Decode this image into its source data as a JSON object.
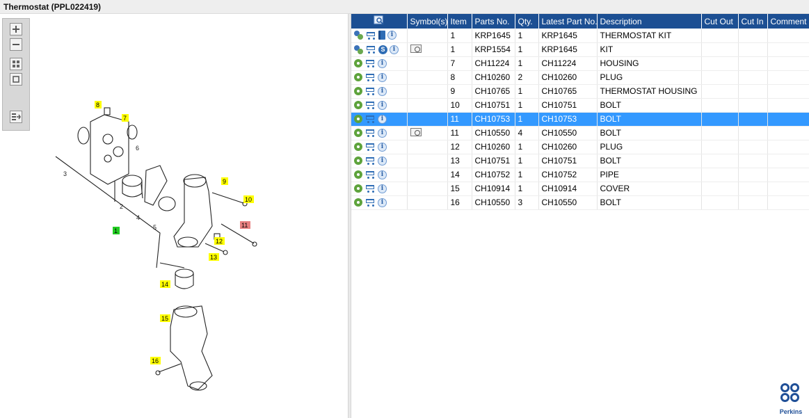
{
  "window": {
    "title": "Thermostat (PPL022419)"
  },
  "toolbox": {
    "tools": [
      {
        "name": "zoom-in-icon"
      },
      {
        "name": "zoom-out-icon"
      },
      {
        "name": "fit-grid-icon"
      },
      {
        "name": "fit-page-icon"
      },
      {
        "name": "export-list-icon"
      }
    ]
  },
  "diagram": {
    "callouts": [
      {
        "label": "1",
        "highlight": "green"
      },
      {
        "label": "2",
        "highlight": "none"
      },
      {
        "label": "3",
        "highlight": "none"
      },
      {
        "label": "4",
        "highlight": "none"
      },
      {
        "label": "5",
        "highlight": "none"
      },
      {
        "label": "6",
        "highlight": "none"
      },
      {
        "label": "7",
        "highlight": "yellow"
      },
      {
        "label": "8",
        "highlight": "yellow"
      },
      {
        "label": "9",
        "highlight": "yellow"
      },
      {
        "label": "10",
        "highlight": "yellow"
      },
      {
        "label": "11",
        "highlight": "red"
      },
      {
        "label": "12",
        "highlight": "yellow"
      },
      {
        "label": "13",
        "highlight": "yellow"
      },
      {
        "label": "14",
        "highlight": "yellow"
      },
      {
        "label": "15",
        "highlight": "yellow"
      },
      {
        "label": "16",
        "highlight": "yellow"
      }
    ]
  },
  "table": {
    "columns": [
      "",
      "Symbol(s)",
      "Item",
      "Parts No.",
      "Qty.",
      "Latest Part No.",
      "Description",
      "Cut Out",
      "Cut In",
      "Comment"
    ],
    "rows": [
      {
        "icons": [
          "kit-cogs-icon",
          "cart-icon",
          "book-icon",
          "info-icon"
        ],
        "symbol": "",
        "item": "1",
        "part": "KRP1645",
        "qty": "1",
        "latest": "KRP1645",
        "desc": "THERMOSTAT KIT",
        "cutout": "",
        "cutin": "",
        "comment": "",
        "selected": false
      },
      {
        "icons": [
          "kit-cogs-icon",
          "cart-icon",
          "s-badge-icon",
          "info-icon"
        ],
        "symbol": "symbol-icon",
        "item": "1",
        "part": "KRP1554",
        "qty": "1",
        "latest": "KRP1645",
        "desc": "KIT",
        "cutout": "",
        "cutin": "",
        "comment": "",
        "selected": false
      },
      {
        "icons": [
          "part-cog-icon",
          "cart-icon",
          "info-icon"
        ],
        "symbol": "",
        "item": "7",
        "part": "CH11224",
        "qty": "1",
        "latest": "CH11224",
        "desc": "HOUSING",
        "cutout": "",
        "cutin": "",
        "comment": "",
        "selected": false
      },
      {
        "icons": [
          "part-cog-icon",
          "cart-icon",
          "info-icon"
        ],
        "symbol": "",
        "item": "8",
        "part": "CH10260",
        "qty": "2",
        "latest": "CH10260",
        "desc": "PLUG",
        "cutout": "",
        "cutin": "",
        "comment": "",
        "selected": false
      },
      {
        "icons": [
          "part-cog-icon",
          "cart-icon",
          "info-icon"
        ],
        "symbol": "",
        "item": "9",
        "part": "CH10765",
        "qty": "1",
        "latest": "CH10765",
        "desc": "THERMOSTAT HOUSING",
        "cutout": "",
        "cutin": "",
        "comment": "",
        "selected": false
      },
      {
        "icons": [
          "part-cog-icon",
          "cart-icon",
          "info-icon"
        ],
        "symbol": "",
        "item": "10",
        "part": "CH10751",
        "qty": "1",
        "latest": "CH10751",
        "desc": "BOLT",
        "cutout": "",
        "cutin": "",
        "comment": "",
        "selected": false
      },
      {
        "icons": [
          "part-cog-icon",
          "cart-icon",
          "info-icon"
        ],
        "symbol": "",
        "item": "11",
        "part": "CH10753",
        "qty": "1",
        "latest": "CH10753",
        "desc": "BOLT",
        "cutout": "",
        "cutin": "",
        "comment": "",
        "selected": true
      },
      {
        "icons": [
          "part-cog-icon",
          "cart-icon",
          "info-icon"
        ],
        "symbol": "symbol-icon",
        "item": "11",
        "part": "CH10550",
        "qty": "4",
        "latest": "CH10550",
        "desc": "BOLT",
        "cutout": "",
        "cutin": "",
        "comment": "",
        "selected": false
      },
      {
        "icons": [
          "part-cog-icon",
          "cart-icon",
          "info-icon"
        ],
        "symbol": "",
        "item": "12",
        "part": "CH10260",
        "qty": "1",
        "latest": "CH10260",
        "desc": "PLUG",
        "cutout": "",
        "cutin": "",
        "comment": "",
        "selected": false
      },
      {
        "icons": [
          "part-cog-icon",
          "cart-icon",
          "info-icon"
        ],
        "symbol": "",
        "item": "13",
        "part": "CH10751",
        "qty": "1",
        "latest": "CH10751",
        "desc": "BOLT",
        "cutout": "",
        "cutin": "",
        "comment": "",
        "selected": false
      },
      {
        "icons": [
          "part-cog-icon",
          "cart-icon",
          "info-icon"
        ],
        "symbol": "",
        "item": "14",
        "part": "CH10752",
        "qty": "1",
        "latest": "CH10752",
        "desc": "PIPE",
        "cutout": "",
        "cutin": "",
        "comment": "",
        "selected": false
      },
      {
        "icons": [
          "part-cog-icon",
          "cart-icon",
          "info-icon"
        ],
        "symbol": "",
        "item": "15",
        "part": "CH10914",
        "qty": "1",
        "latest": "CH10914",
        "desc": "COVER",
        "cutout": "",
        "cutin": "",
        "comment": "",
        "selected": false
      },
      {
        "icons": [
          "part-cog-icon",
          "cart-icon",
          "info-icon"
        ],
        "symbol": "",
        "item": "16",
        "part": "CH10550",
        "qty": "3",
        "latest": "CH10550",
        "desc": "BOLT",
        "cutout": "",
        "cutin": "",
        "comment": "",
        "selected": false
      }
    ]
  },
  "branding": {
    "logo_text": "Perkins"
  },
  "colors": {
    "header_bg": "#1c4f93",
    "selected_row": "#3399ff",
    "callout_yellow": "#ffff00",
    "callout_green": "#22cc22",
    "callout_red": "#e88080"
  }
}
